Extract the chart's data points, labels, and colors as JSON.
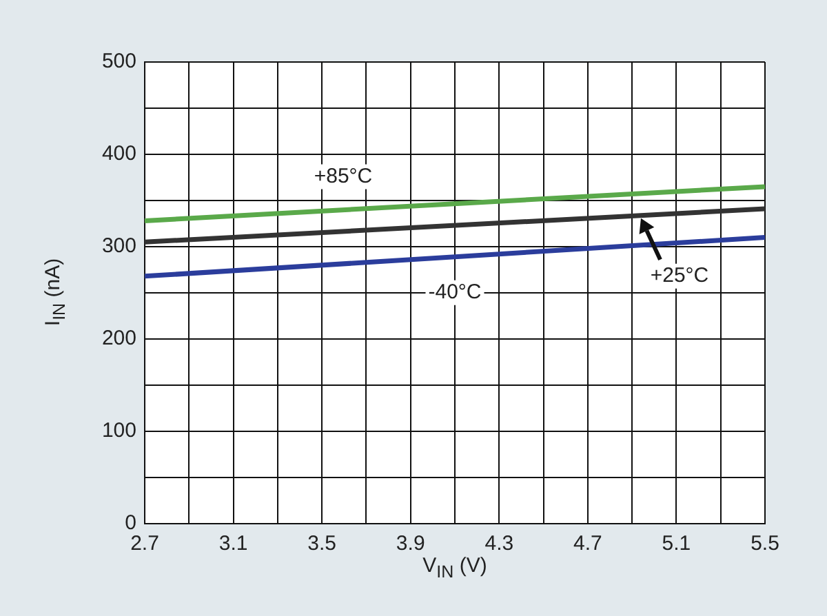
{
  "chart_data": {
    "type": "line",
    "xlabel": "V$_{IN}$ (V)",
    "ylabel": "I$_{IN}$ (nA)",
    "x": [
      2.7,
      5.5
    ],
    "series": [
      {
        "name": "+85°C",
        "color": "#5aa94a",
        "values": [
          328,
          365
        ]
      },
      {
        "name": "+25°C",
        "color": "#333333",
        "values": [
          305,
          341
        ]
      },
      {
        "name": "-40°C",
        "color": "#2b3d9c",
        "values": [
          268,
          310
        ]
      }
    ],
    "xlim": [
      2.7,
      5.5
    ],
    "xticks": [
      2.7,
      {
        "value": 2.9,
        "label": null
      },
      3.1,
      {
        "value": 3.3,
        "label": null
      },
      3.5,
      {
        "value": 3.7,
        "label": null
      },
      3.9,
      {
        "value": 4.1,
        "label": null
      },
      4.3,
      {
        "value": 4.5,
        "label": null
      },
      4.7,
      {
        "value": 4.9,
        "label": null
      },
      5.1,
      {
        "value": 5.3,
        "label": null
      },
      5.5
    ],
    "ylim": [
      0,
      500
    ],
    "yticks": [
      0,
      {
        "value": 50,
        "label": null
      },
      100,
      {
        "value": 150,
        "label": null
      },
      200,
      {
        "value": 250,
        "label": null
      },
      300,
      {
        "value": 350,
        "label": null
      },
      400,
      {
        "value": 450,
        "label": null
      },
      500
    ],
    "grid": true,
    "legend": false,
    "marker": "none",
    "line_style": "solid"
  }
}
